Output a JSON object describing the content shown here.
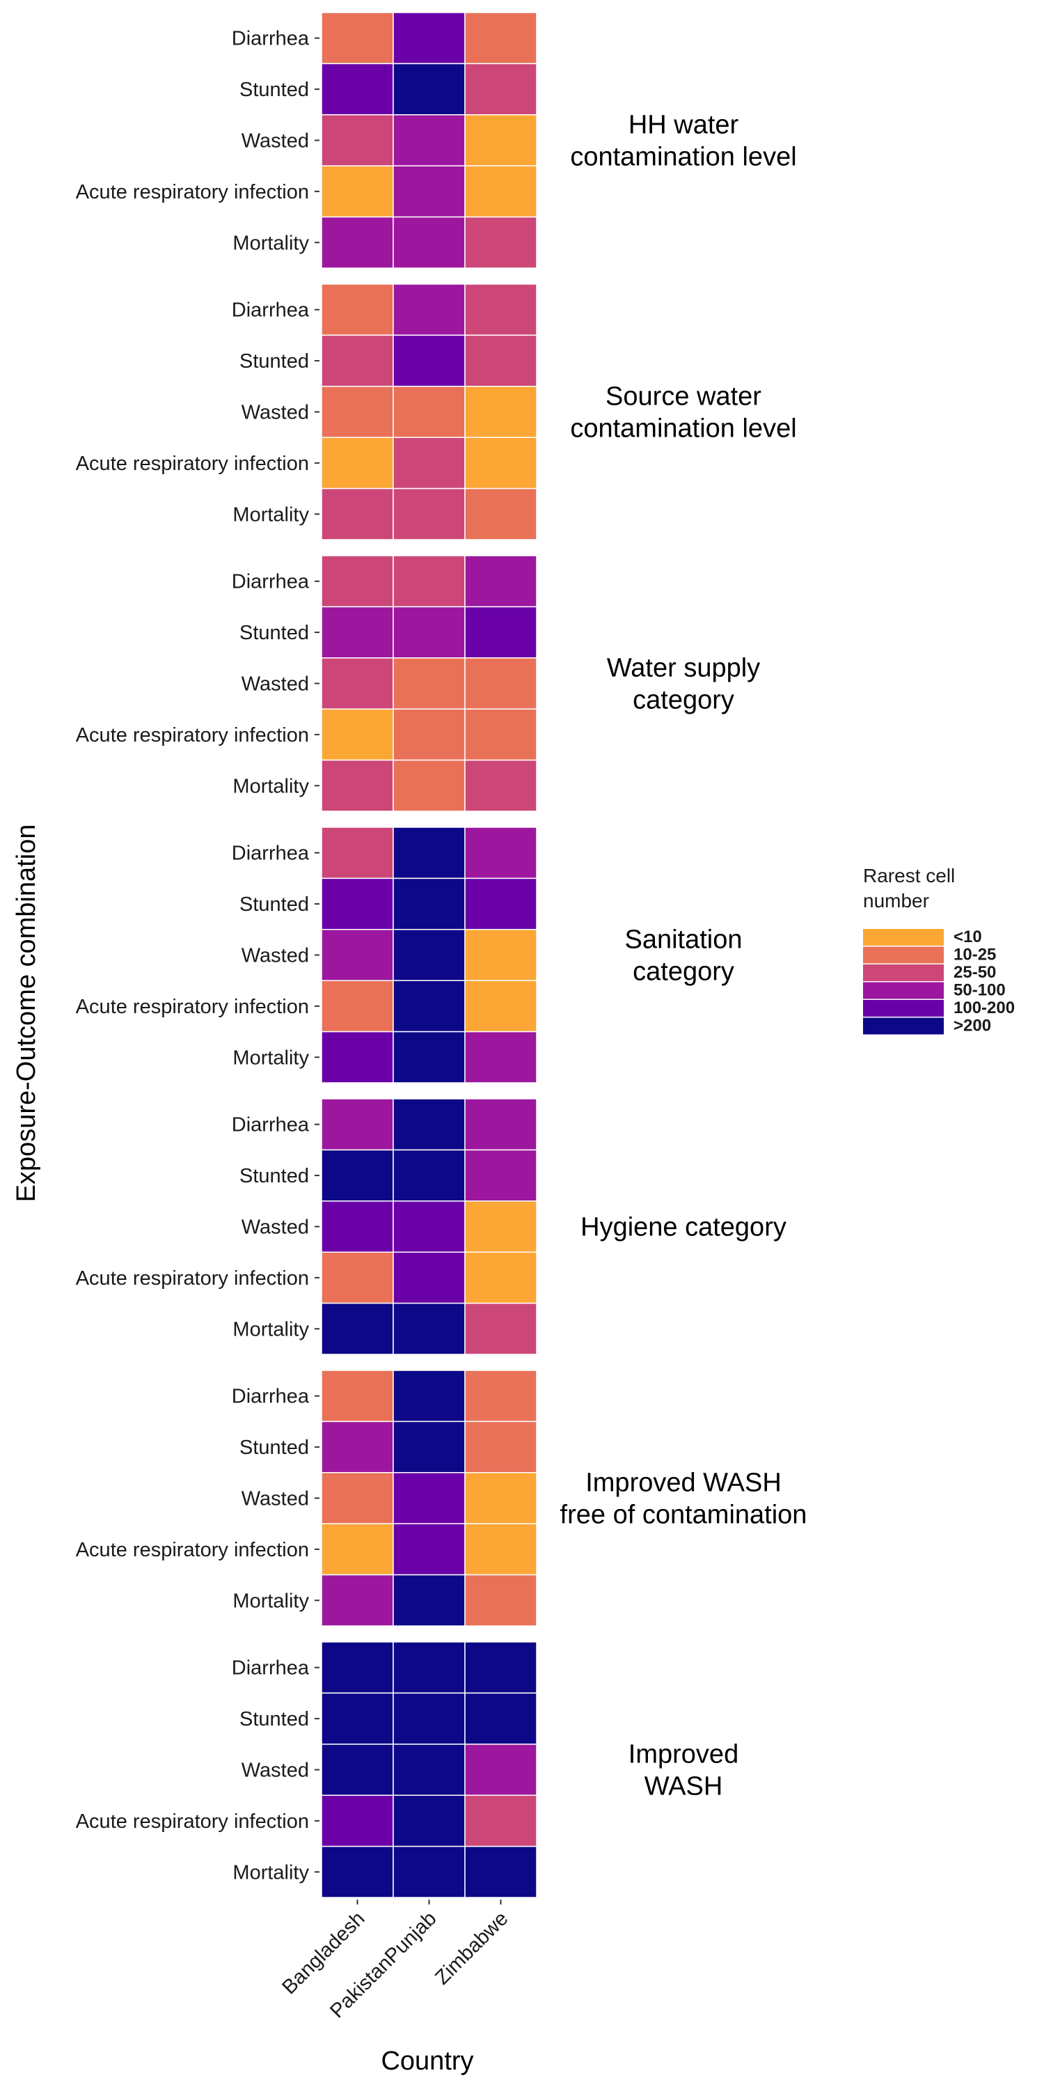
{
  "chart_data": {
    "type": "heatmap",
    "xlabel": "Country",
    "ylabel": "Exposure-Outcome combination",
    "x_categories": [
      "Bangladesh",
      "PakistanPunjab",
      "Zimbabwe"
    ],
    "y_categories": [
      "Diarrhea",
      "Stunted",
      "Wasted",
      "Acute respiratory infection",
      "Mortality"
    ],
    "legend": {
      "title_lines": [
        "Rarest cell",
        "number"
      ],
      "position": "right",
      "bins": [
        {
          "label": "<10",
          "color": "#fca636"
        },
        {
          "label": "10-25",
          "color": "#e97158"
        },
        {
          "label": "25-50",
          "color": "#cc4778"
        },
        {
          "label": "50-100",
          "color": "#9c179e"
        },
        {
          "label": "100-200",
          "color": "#6a00a8"
        },
        {
          "label": ">200",
          "color": "#0d0887"
        }
      ]
    },
    "facets": [
      {
        "label_lines": [
          "HH water",
          "contamination level"
        ],
        "cells": [
          [
            "10-25",
            "100-200",
            "10-25"
          ],
          [
            "100-200",
            ">200",
            "25-50"
          ],
          [
            "25-50",
            "50-100",
            "<10"
          ],
          [
            "<10",
            "50-100",
            "<10"
          ],
          [
            "50-100",
            "50-100",
            "25-50"
          ]
        ]
      },
      {
        "label_lines": [
          "Source water",
          "contamination level"
        ],
        "cells": [
          [
            "10-25",
            "50-100",
            "25-50"
          ],
          [
            "25-50",
            "100-200",
            "25-50"
          ],
          [
            "10-25",
            "10-25",
            "<10"
          ],
          [
            "<10",
            "25-50",
            "<10"
          ],
          [
            "25-50",
            "25-50",
            "10-25"
          ]
        ]
      },
      {
        "label_lines": [
          "Water supply",
          "category"
        ],
        "cells": [
          [
            "25-50",
            "25-50",
            "50-100"
          ],
          [
            "50-100",
            "50-100",
            "100-200"
          ],
          [
            "25-50",
            "10-25",
            "10-25"
          ],
          [
            "<10",
            "10-25",
            "10-25"
          ],
          [
            "25-50",
            "10-25",
            "25-50"
          ]
        ]
      },
      {
        "label_lines": [
          "Sanitation",
          "category"
        ],
        "cells": [
          [
            "25-50",
            ">200",
            "50-100"
          ],
          [
            "100-200",
            ">200",
            "100-200"
          ],
          [
            "50-100",
            ">200",
            "<10"
          ],
          [
            "10-25",
            ">200",
            "<10"
          ],
          [
            "100-200",
            ">200",
            "50-100"
          ]
        ]
      },
      {
        "label_lines": [
          "Hygiene category"
        ],
        "cells": [
          [
            "50-100",
            ">200",
            "50-100"
          ],
          [
            ">200",
            ">200",
            "50-100"
          ],
          [
            "100-200",
            "100-200",
            "<10"
          ],
          [
            "10-25",
            "100-200",
            "<10"
          ],
          [
            ">200",
            ">200",
            "25-50"
          ]
        ]
      },
      {
        "label_lines": [
          "Improved WASH",
          "free of contamination"
        ],
        "cells": [
          [
            "10-25",
            ">200",
            "10-25"
          ],
          [
            "50-100",
            ">200",
            "10-25"
          ],
          [
            "10-25",
            "100-200",
            "<10"
          ],
          [
            "<10",
            "100-200",
            "<10"
          ],
          [
            "50-100",
            ">200",
            "10-25"
          ]
        ]
      },
      {
        "label_lines": [
          "Improved",
          "WASH"
        ],
        "cells": [
          [
            ">200",
            ">200",
            ">200"
          ],
          [
            ">200",
            ">200",
            ">200"
          ],
          [
            ">200",
            ">200",
            "50-100"
          ],
          [
            "100-200",
            ">200",
            "25-50"
          ],
          [
            ">200",
            ">200",
            ">200"
          ]
        ]
      }
    ]
  }
}
